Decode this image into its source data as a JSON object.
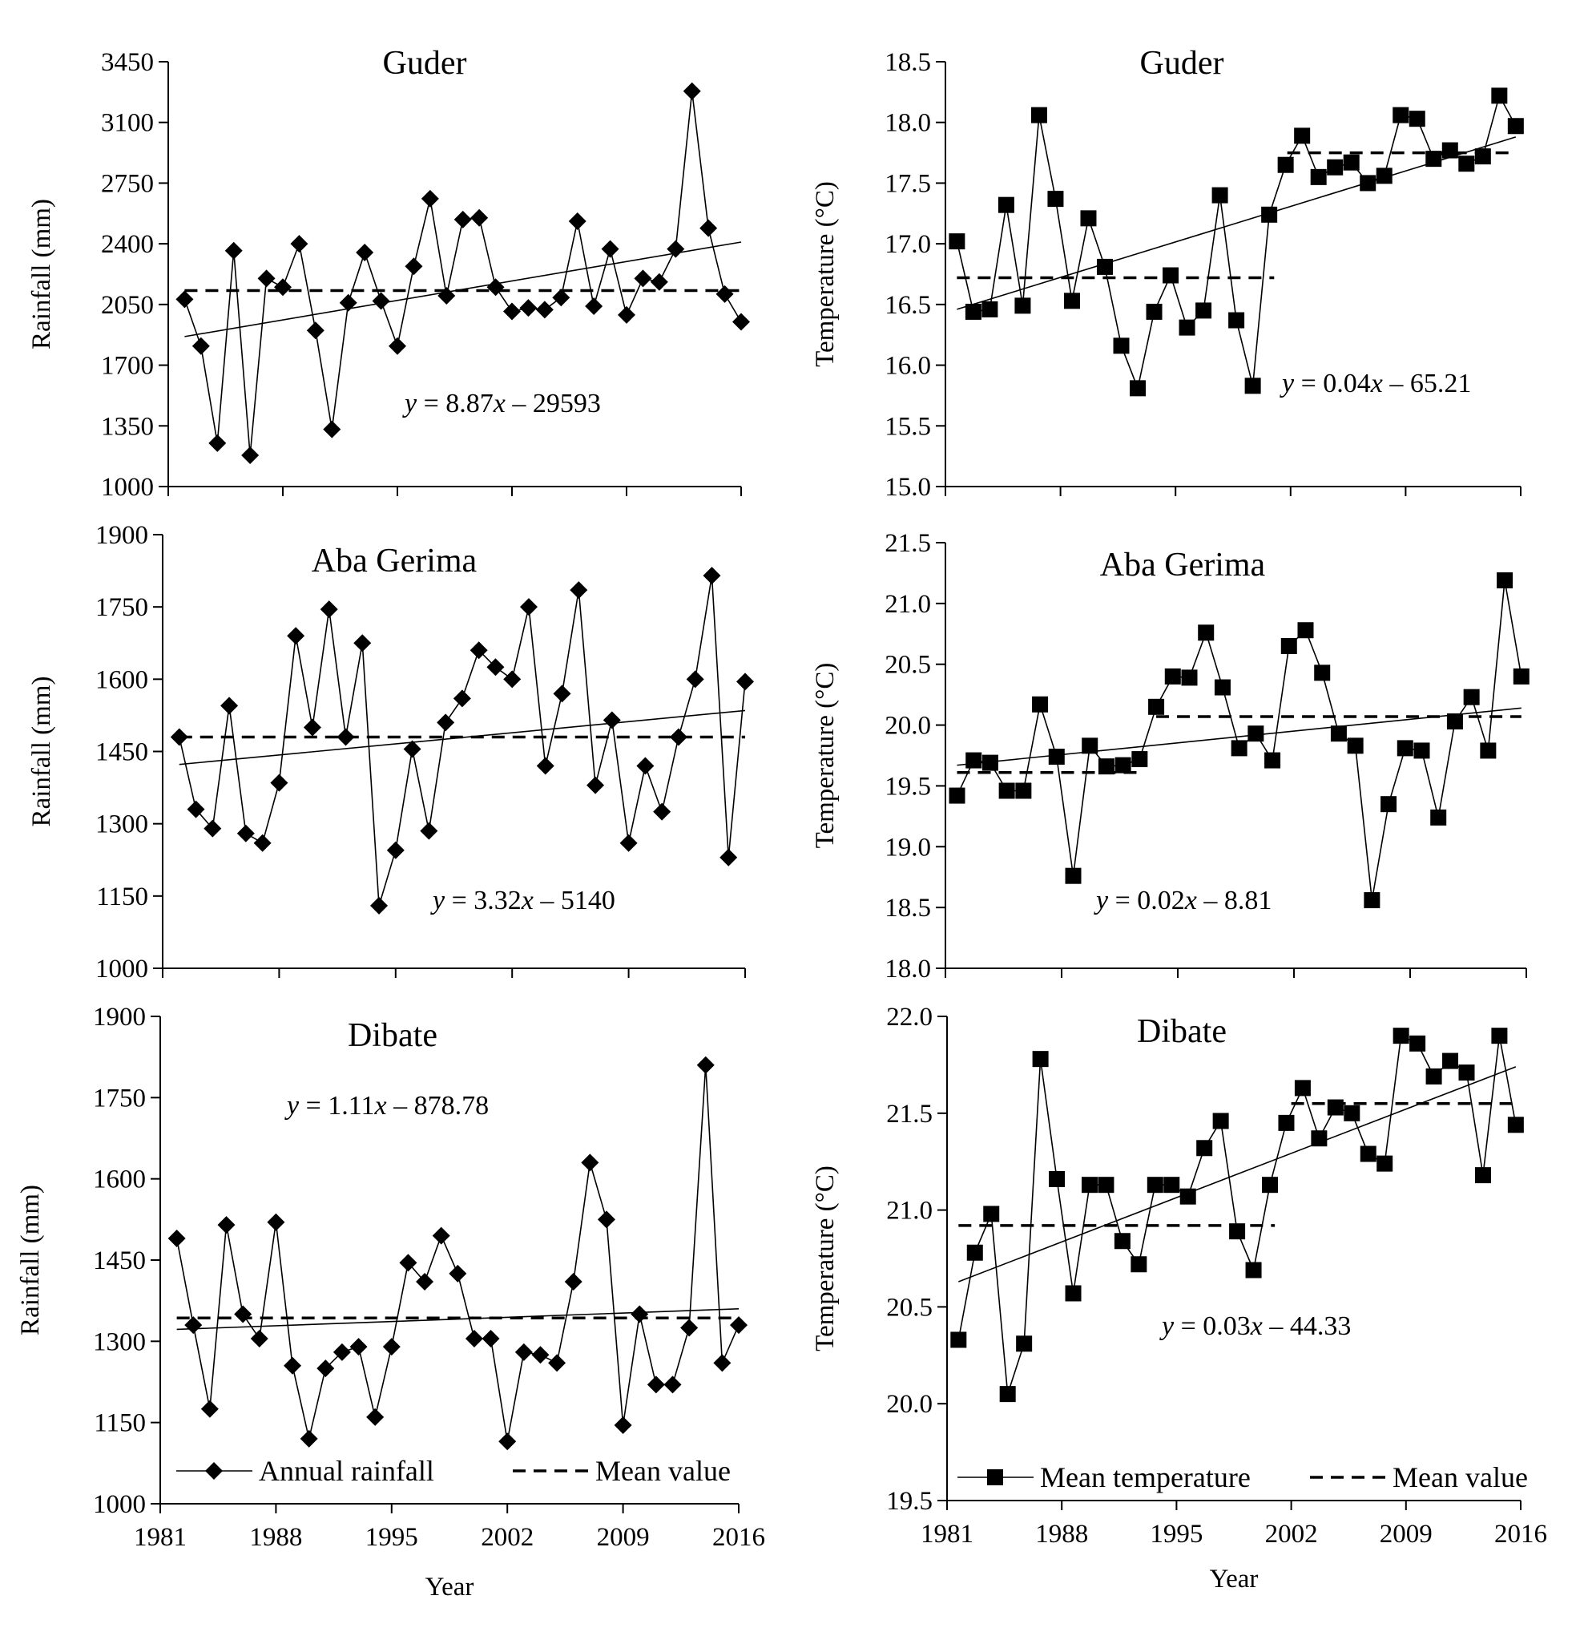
{
  "chart_data": [
    {
      "type": "line",
      "panel": "rainfall-guder",
      "title": "Guder",
      "xlabel": "",
      "ylabel": "Rainfall  (mm)",
      "xlim": [
        1981,
        2016
      ],
      "ylim": [
        1000,
        3450
      ],
      "xticks": [
        1981,
        1988,
        1995,
        2002,
        2009,
        2016
      ],
      "xtick_labels": [
        "",
        "",
        "",
        "",
        "",
        ""
      ],
      "yticks": [
        1000,
        1350,
        1700,
        2050,
        2400,
        2750,
        3100,
        3450
      ],
      "marker": "diamond",
      "x": [
        1982,
        1983,
        1984,
        1985,
        1986,
        1987,
        1988,
        1989,
        1990,
        1991,
        1992,
        1993,
        1994,
        1995,
        1996,
        1997,
        1998,
        1999,
        2000,
        2001,
        2002,
        2003,
        2004,
        2005,
        2006,
        2007,
        2008,
        2009,
        2010,
        2011,
        2012,
        2013,
        2014,
        2015,
        2016
      ],
      "series": [
        {
          "name": "Annual rainfall",
          "values": [
            2080,
            1810,
            1250,
            2360,
            1180,
            2200,
            2150,
            2400,
            1900,
            1330,
            2060,
            2350,
            2070,
            1810,
            2270,
            2660,
            2100,
            2540,
            2550,
            2150,
            2010,
            2030,
            2020,
            2090,
            2530,
            2040,
            2370,
            1990,
            2200,
            2180,
            2370,
            3280,
            2490,
            2110,
            1950
          ]
        },
        {
          "name": "Mean value",
          "style": "dashed",
          "x": [
            1982,
            2016
          ],
          "values": [
            2130,
            2130
          ]
        },
        {
          "name": "Trend",
          "style": "trend",
          "x": [
            1982,
            2016
          ],
          "values": [
            1865,
            2410
          ]
        }
      ],
      "equation": {
        "y": "y",
        "eq": " = 8.87",
        "x": "x",
        "rest": " – 29593"
      }
    },
    {
      "type": "line",
      "panel": "temperature-guder",
      "title": "Guder",
      "xlabel": "",
      "ylabel": "Temperature  (°C)",
      "xlim": [
        1981,
        2016
      ],
      "ylim": [
        15.0,
        18.5
      ],
      "xticks": [
        1981,
        1988,
        1995,
        2002,
        2009,
        2016
      ],
      "xtick_labels": [
        "",
        "",
        "",
        "",
        "",
        ""
      ],
      "yticks": [
        "15.0",
        "15.5",
        "16.0",
        "16.5",
        "17.0",
        "17.5",
        "18.0",
        "18.5"
      ],
      "marker": "square",
      "x": [
        1981.7,
        1982.7,
        1983.7,
        1984.7,
        1985.7,
        1986.7,
        1987.7,
        1988.7,
        1989.7,
        1990.7,
        1991.7,
        1992.7,
        1993.7,
        1994.7,
        1995.7,
        1996.7,
        1997.7,
        1998.7,
        1999.7,
        2000.7,
        2001.7,
        2002.7,
        2003.7,
        2004.7,
        2005.7,
        2006.7,
        2007.7,
        2008.7,
        2009.7,
        2010.7,
        2011.7,
        2012.7,
        2013.7,
        2014.7,
        2015.7
      ],
      "series": [
        {
          "name": "Mean temperature",
          "values": [
            17.02,
            16.44,
            16.46,
            17.32,
            16.49,
            18.06,
            17.37,
            16.53,
            17.21,
            16.81,
            16.16,
            15.81,
            16.44,
            16.74,
            16.31,
            16.45,
            17.4,
            16.37,
            15.83,
            17.24,
            17.65,
            17.89,
            17.55,
            17.63,
            17.67,
            17.5,
            17.56,
            18.06,
            18.03,
            17.7,
            17.77,
            17.66,
            17.72,
            18.22,
            17.97
          ]
        },
        {
          "name": "Mean value (1981–2001)",
          "style": "dashed",
          "x": [
            1981.7,
            2001.0
          ],
          "values": [
            16.72,
            16.72
          ]
        },
        {
          "name": "Mean value (2001–2016)",
          "style": "dashed",
          "x": [
            2001.8,
            2015.7
          ],
          "values": [
            17.75,
            17.75
          ]
        },
        {
          "name": "Trend",
          "style": "trend",
          "x": [
            1981.7,
            2015.7
          ],
          "values": [
            16.46,
            17.88
          ]
        }
      ],
      "equation": {
        "y": "y",
        "eq": " = 0.04",
        "x": "x",
        "rest": " – 65.21"
      }
    },
    {
      "type": "line",
      "panel": "rainfall-aba-gerima",
      "title": "Aba Gerima",
      "xlabel": "",
      "ylabel": "Rainfall  (mm)",
      "xlim": [
        1981,
        2016
      ],
      "ylim": [
        1000,
        1900
      ],
      "xticks": [
        1981,
        1988,
        1995,
        2002,
        2009,
        2016
      ],
      "xtick_labels": [
        "",
        "",
        "",
        "",
        "",
        ""
      ],
      "yticks": [
        1000,
        1150,
        1300,
        1450,
        1600,
        1750,
        1900
      ],
      "marker": "diamond",
      "x": [
        1982,
        1983,
        1984,
        1985,
        1986,
        1987,
        1988,
        1989,
        1990,
        1991,
        1992,
        1993,
        1994,
        1995,
        1996,
        1997,
        1998,
        1999,
        2000,
        2001,
        2002,
        2003,
        2004,
        2005,
        2006,
        2007,
        2008,
        2009,
        2010,
        2011,
        2012,
        2013,
        2014,
        2015,
        2016
      ],
      "series": [
        {
          "name": "Annual rainfall",
          "values": [
            1480,
            1330,
            1290,
            1545,
            1280,
            1260,
            1385,
            1690,
            1500,
            1745,
            1480,
            1675,
            1130,
            1245,
            1455,
            1285,
            1510,
            1560,
            1660,
            1625,
            1600,
            1750,
            1420,
            1570,
            1785,
            1380,
            1515,
            1260,
            1420,
            1325,
            1480,
            1600,
            1815,
            1230,
            1595
          ]
        },
        {
          "name": "Mean value",
          "style": "dashed",
          "x": [
            1982,
            2016
          ],
          "values": [
            1480,
            1480
          ]
        },
        {
          "name": "Trend",
          "style": "trend",
          "x": [
            1982,
            2016
          ],
          "values": [
            1423,
            1535
          ]
        }
      ],
      "equation": {
        "y": "y",
        "eq": " = 3.32",
        "x": "x",
        "rest": " – 5140"
      }
    },
    {
      "type": "line",
      "panel": "temperature-aba-gerima",
      "title": "Aba Gerima",
      "xlabel": "",
      "ylabel": "Temperature  (°C)",
      "xlim": [
        1981,
        2016
      ],
      "ylim": [
        18.0,
        21.5
      ],
      "xticks": [
        1981,
        1988,
        1995,
        2002,
        2009,
        2016
      ],
      "xtick_labels": [
        "",
        "",
        "",
        "",
        "",
        ""
      ],
      "yticks": [
        "18.0",
        "18.5",
        "19.0",
        "19.5",
        "20.0",
        "20.5",
        "21.0",
        "21.5"
      ],
      "marker": "square",
      "x": [
        1981.7,
        1982.7,
        1983.7,
        1984.7,
        1985.7,
        1986.7,
        1987.7,
        1988.7,
        1989.7,
        1990.7,
        1991.7,
        1992.7,
        1993.7,
        1994.7,
        1995.7,
        1996.7,
        1997.7,
        1998.7,
        1999.7,
        2000.7,
        2001.7,
        2002.7,
        2003.7,
        2004.7,
        2005.7,
        2006.7,
        2007.7,
        2008.7,
        2009.7,
        2010.7,
        2011.7,
        2012.7,
        2013.7,
        2014.7,
        2015.7
      ],
      "series": [
        {
          "name": "Mean temperature",
          "values": [
            19.42,
            19.71,
            19.69,
            19.46,
            19.46,
            20.17,
            19.74,
            18.76,
            19.83,
            19.66,
            19.67,
            19.72,
            20.15,
            20.4,
            20.39,
            20.76,
            20.31,
            19.81,
            19.93,
            19.71,
            20.65,
            20.78,
            20.43,
            19.93,
            19.83,
            18.56,
            19.35,
            19.81,
            19.79,
            19.24,
            20.03,
            20.23,
            19.79,
            21.19,
            20.4
          ]
        },
        {
          "name": "Mean value (1981–1993)",
          "style": "dashed",
          "x": [
            1981.7,
            1992.8
          ],
          "values": [
            19.61,
            19.61
          ]
        },
        {
          "name": "Mean value (1994–2016)",
          "style": "dashed",
          "x": [
            1993.7,
            2015.7
          ],
          "values": [
            20.07,
            20.07
          ]
        },
        {
          "name": "Trend",
          "style": "trend",
          "x": [
            1981.7,
            2015.7
          ],
          "values": [
            19.67,
            20.14
          ]
        }
      ],
      "equation": {
        "y": "y",
        "eq": " = 0.02",
        "x": "x",
        "rest": " – 8.81"
      }
    },
    {
      "type": "line",
      "panel": "rainfall-dibate",
      "title": "Dibate",
      "xlabel": "Year",
      "ylabel": "Rainfall  (mm)",
      "xlim": [
        1981,
        2016
      ],
      "ylim": [
        1000,
        1900
      ],
      "xticks": [
        1981,
        1988,
        1995,
        2002,
        2009,
        2016
      ],
      "xtick_labels": [
        "1981",
        "1988",
        "1995",
        "2002",
        "2009",
        "2016"
      ],
      "yticks": [
        1000,
        1150,
        1300,
        1450,
        1600,
        1750,
        1900
      ],
      "marker": "diamond",
      "x": [
        1982,
        1983,
        1984,
        1985,
        1986,
        1987,
        1988,
        1989,
        1990,
        1991,
        1992,
        1993,
        1994,
        1995,
        1996,
        1997,
        1998,
        1999,
        2000,
        2001,
        2002,
        2003,
        2004,
        2005,
        2006,
        2007,
        2008,
        2009,
        2010,
        2011,
        2012,
        2013,
        2014,
        2015,
        2016
      ],
      "series": [
        {
          "name": "Annual rainfall",
          "values": [
            1490,
            1330,
            1175,
            1515,
            1350,
            1305,
            1520,
            1255,
            1120,
            1250,
            1280,
            1290,
            1160,
            1290,
            1445,
            1410,
            1495,
            1425,
            1305,
            1305,
            1115,
            1280,
            1275,
            1260,
            1410,
            1630,
            1525,
            1145,
            1350,
            1220,
            1220,
            1325,
            1810,
            1260,
            1330
          ]
        },
        {
          "name": "Mean value",
          "style": "dashed",
          "x": [
            1982,
            2016
          ],
          "values": [
            1343,
            1343
          ]
        },
        {
          "name": "Trend",
          "style": "trend",
          "x": [
            1982,
            2016
          ],
          "values": [
            1322,
            1360
          ]
        }
      ],
      "legend": [
        {
          "label": "Annual rainfall",
          "marker": "diamond"
        },
        {
          "label": "Mean value",
          "style": "dashed"
        }
      ],
      "equation": {
        "y": "y",
        "eq": " = 1.11",
        "x": "x",
        "rest": " – 878.78"
      }
    },
    {
      "type": "line",
      "panel": "temperature-dibate",
      "title": "Dibate",
      "xlabel": "Year",
      "ylabel": "Temperature  (°C)",
      "xlim": [
        1981,
        2016
      ],
      "ylim": [
        19.5,
        22.0
      ],
      "xticks": [
        1981,
        1988,
        1995,
        2002,
        2009,
        2016
      ],
      "xtick_labels": [
        "1981",
        "1988",
        "1995",
        "2002",
        "2009",
        "2016"
      ],
      "yticks": [
        "19.5",
        "20.0",
        "20.5",
        "21.0",
        "21.5",
        "22.0"
      ],
      "marker": "square",
      "x": [
        1981.7,
        1982.7,
        1983.7,
        1984.7,
        1985.7,
        1986.7,
        1987.7,
        1988.7,
        1989.7,
        1990.7,
        1991.7,
        1992.7,
        1993.7,
        1994.7,
        1995.7,
        1996.7,
        1997.7,
        1998.7,
        1999.7,
        2000.7,
        2001.7,
        2002.7,
        2003.7,
        2004.7,
        2005.7,
        2006.7,
        2007.7,
        2008.7,
        2009.7,
        2010.7,
        2011.7,
        2012.7,
        2013.7,
        2014.7,
        2015.7
      ],
      "series": [
        {
          "name": "Mean temperature",
          "values": [
            20.33,
            20.78,
            20.98,
            20.05,
            20.31,
            21.78,
            21.16,
            20.57,
            21.13,
            21.13,
            20.84,
            20.72,
            21.13,
            21.13,
            21.07,
            21.32,
            21.46,
            20.89,
            20.69,
            21.13,
            21.45,
            21.63,
            21.37,
            21.53,
            21.5,
            21.29,
            21.24,
            21.9,
            21.86,
            21.69,
            21.77,
            21.71,
            21.18,
            21.9,
            21.44
          ]
        },
        {
          "name": "Mean value (1981–2001)",
          "style": "dashed",
          "x": [
            1981.7,
            2001.0
          ],
          "values": [
            20.92,
            20.92
          ]
        },
        {
          "name": "Mean value (2002–2016)",
          "style": "dashed",
          "x": [
            2002.0,
            2015.7
          ],
          "values": [
            21.55,
            21.55
          ]
        },
        {
          "name": "Trend",
          "style": "trend",
          "x": [
            1981.7,
            2015.7
          ],
          "values": [
            20.63,
            21.74
          ]
        }
      ],
      "legend": [
        {
          "label": "Mean temperature",
          "marker": "square"
        },
        {
          "label": "Mean value",
          "style": "dashed"
        }
      ],
      "equation": {
        "y": "y",
        "eq": " = 0.03",
        "x": "x",
        "rest": " – 44.33"
      }
    }
  ]
}
